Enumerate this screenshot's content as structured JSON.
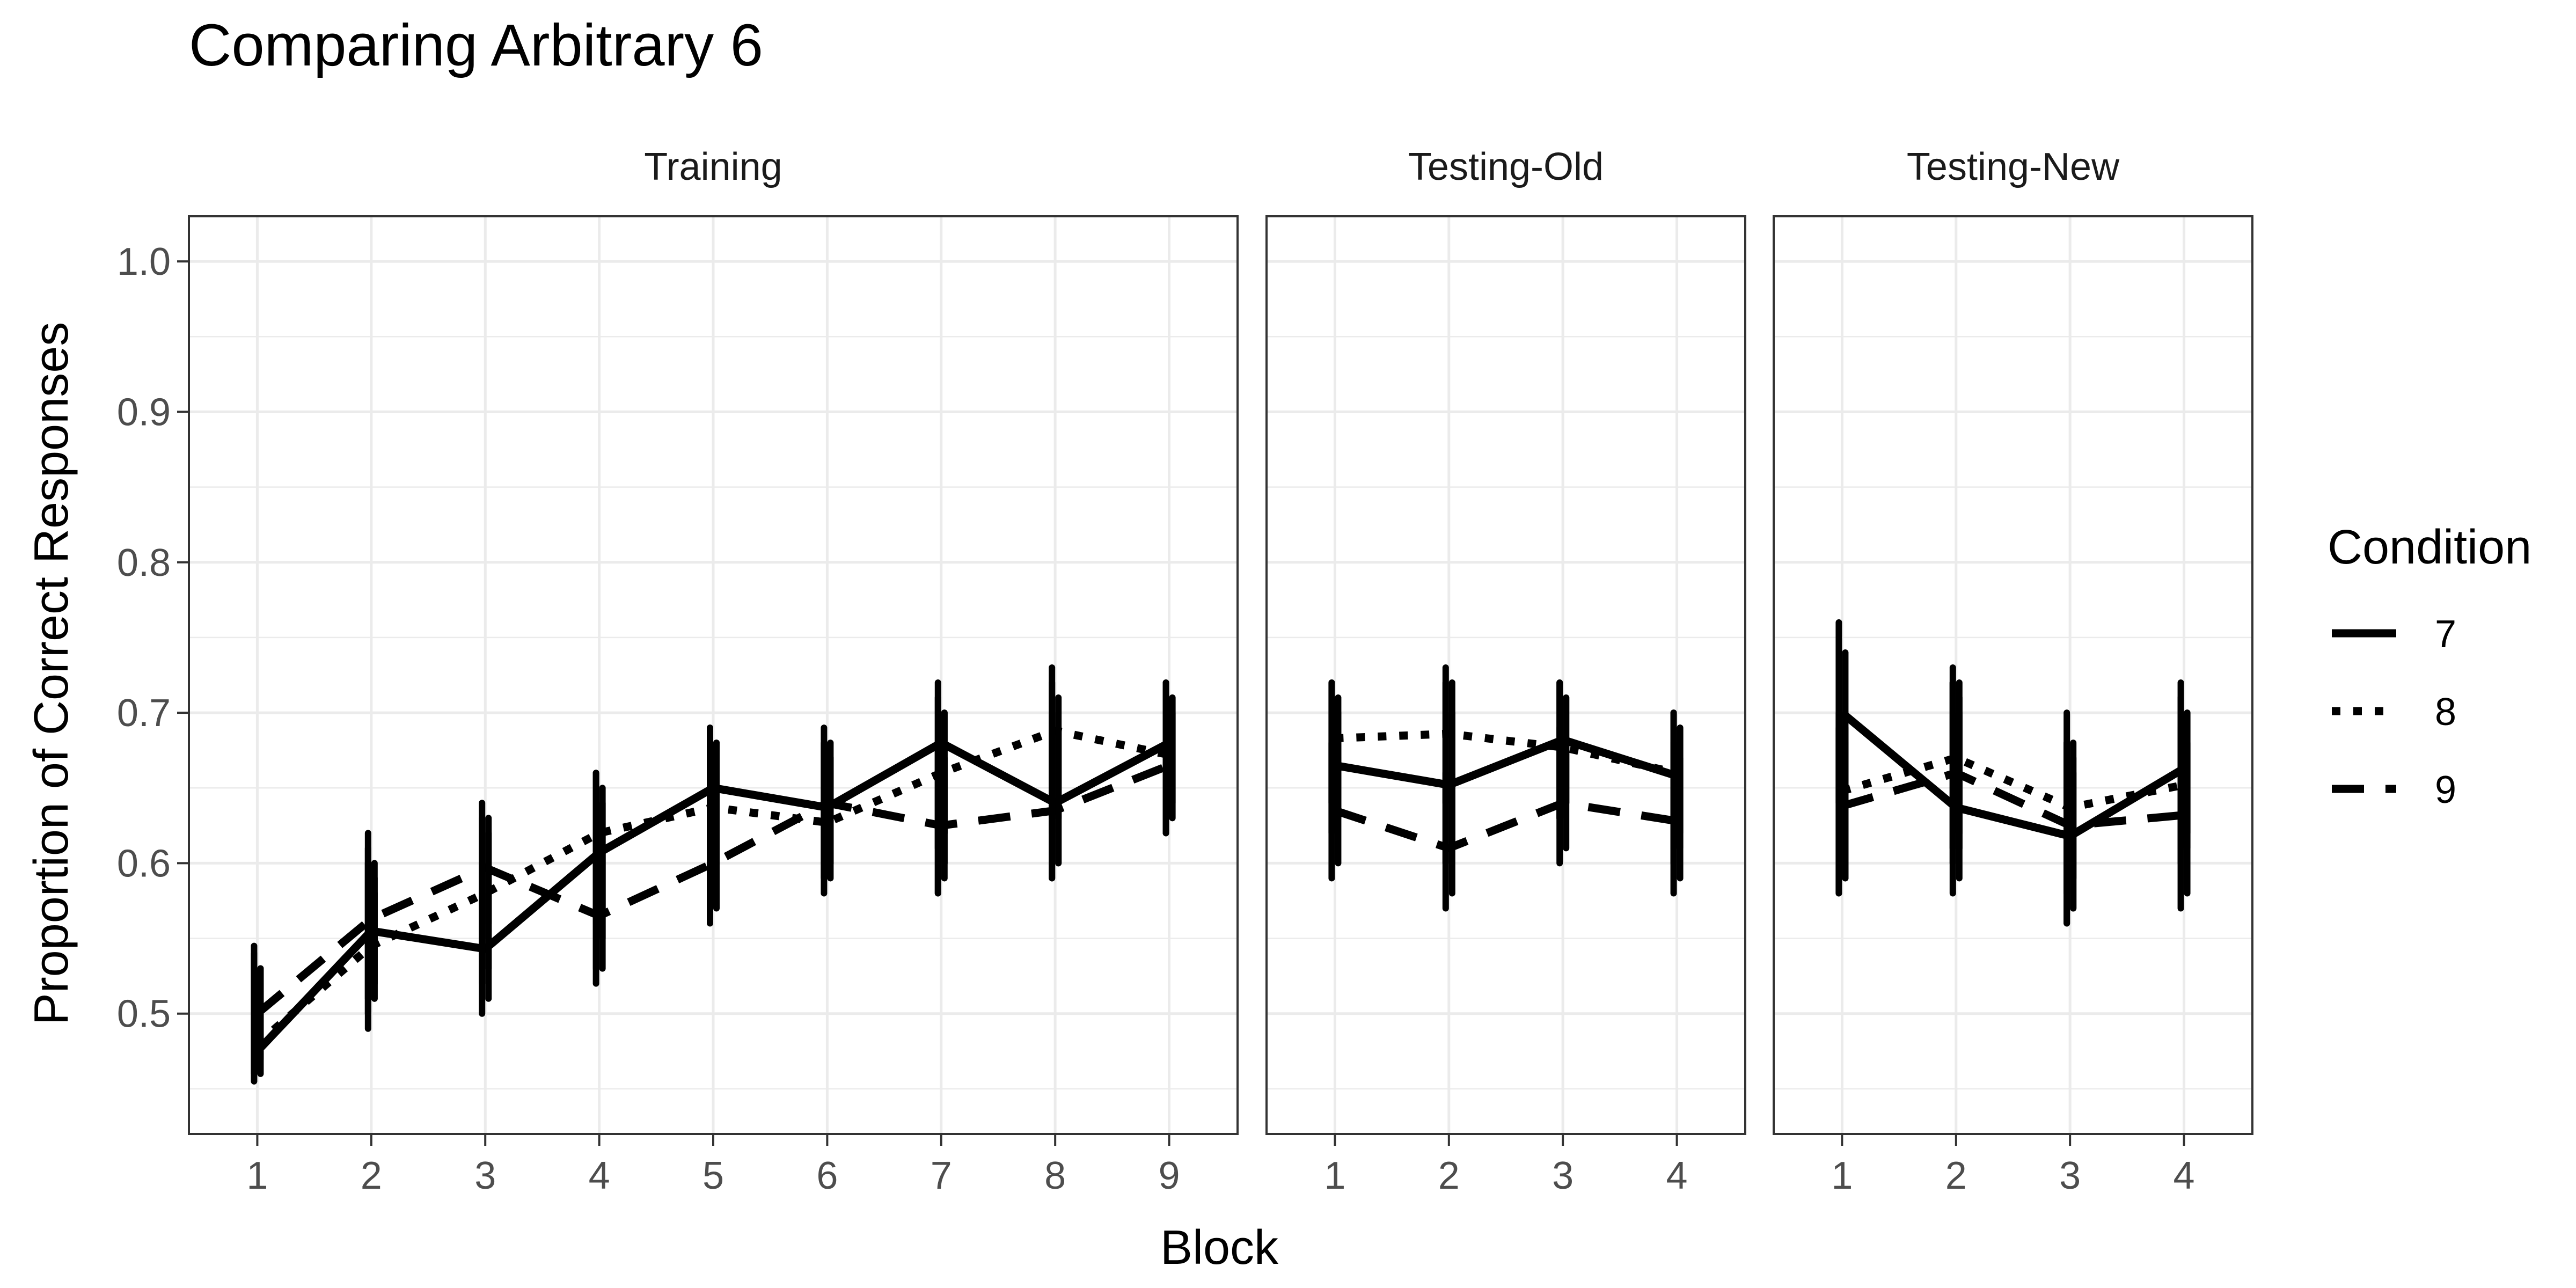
{
  "chart_data": {
    "type": "line",
    "title": "Comparing Arbitrary  6",
    "xlabel": "Block",
    "ylabel": "Proportion of Correct Responses",
    "ylim": [
      0.42,
      1.03
    ],
    "y_ticks": [
      "0.5",
      "0.6",
      "0.7",
      "0.8",
      "0.9",
      "1.0"
    ],
    "y_tick_values": [
      0.5,
      0.6,
      0.7,
      0.8,
      0.9,
      1.0
    ],
    "grid": true,
    "colors": {
      "line": "#000000",
      "grid": "#ebebeb",
      "panel_border": "#333333",
      "text": "#000000",
      "tick_text": "#4d4d4d"
    },
    "legend": {
      "title": "Condition",
      "position": "right",
      "entries": [
        {
          "label": "7",
          "linetype": "solid"
        },
        {
          "label": "8",
          "linetype": "dotted"
        },
        {
          "label": "9",
          "linetype": "dashed"
        }
      ]
    },
    "panels": [
      {
        "name": "Training",
        "categories": [
          "1",
          "2",
          "3",
          "4",
          "5",
          "6",
          "7",
          "8",
          "9"
        ],
        "series": [
          {
            "name": "7",
            "linetype": "solid",
            "values": [
              0.475,
              0.555,
              0.543,
              0.607,
              0.65,
              0.637,
              0.68,
              0.64,
              0.68
            ],
            "errors": [
              [
                [
                  0.455,
                  0.545
                ],
                [
                  0.46,
                  0.53
                ]
              ],
              [
                [
                  0.51,
                  0.6
                ],
                [
                  0.52,
                  0.58
                ]
              ],
              [
                [
                  0.5,
                  0.6
                ],
                [
                  0.51,
                  0.58
                ]
              ],
              [
                [
                  0.56,
                  0.66
                ],
                [
                  0.57,
                  0.64
                ]
              ],
              [
                [
                  0.6,
                  0.69
                ],
                [
                  0.61,
                  0.68
                ]
              ],
              [
                [
                  0.59,
                  0.68
                ],
                [
                  0.6,
                  0.67
                ]
              ],
              [
                [
                  0.58,
                  0.72
                ],
                [
                  0.6,
                  0.7
                ]
              ],
              [
                [
                  0.59,
                  0.73
                ],
                [
                  0.6,
                  0.69
                ]
              ],
              [
                [
                  0.63,
                  0.72
                ],
                [
                  0.64,
                  0.71
                ]
              ]
            ]
          },
          {
            "name": "8",
            "linetype": "dotted",
            "values": [
              0.48,
              0.545,
              0.58,
              0.62,
              0.637,
              0.627,
              0.66,
              0.688,
              0.672
            ],
            "errors": [
              [
                [
                  0.46,
                  0.54
                ],
                [
                  0.47,
                  0.52
                ]
              ],
              [
                [
                  0.5,
                  0.61
                ],
                [
                  0.51,
                  0.59
                ]
              ],
              [
                [
                  0.52,
                  0.63
                ],
                [
                  0.53,
                  0.62
                ]
              ],
              [
                [
                  0.53,
                  0.66
                ],
                [
                  0.55,
                  0.65
                ]
              ],
              [
                [
                  0.58,
                  0.69
                ],
                [
                  0.6,
                  0.68
                ]
              ],
              [
                [
                  0.59,
                  0.68
                ],
                [
                  0.6,
                  0.67
                ]
              ],
              [
                [
                  0.61,
                  0.71
                ],
                [
                  0.62,
                  0.7
                ]
              ],
              [
                [
                  0.62,
                  0.72
                ],
                [
                  0.63,
                  0.71
                ]
              ],
              [
                [
                  0.62,
                  0.72
                ],
                [
                  0.63,
                  0.71
                ]
              ]
            ]
          },
          {
            "name": "9",
            "linetype": "dashed",
            "values": [
              0.5,
              0.563,
              0.597,
              0.565,
              0.6,
              0.64,
              0.625,
              0.635,
              0.665
            ],
            "errors": [
              [
                [
                  0.46,
                  0.54
                ],
                [
                  0.47,
                  0.53
                ]
              ],
              [
                [
                  0.49,
                  0.62
                ],
                [
                  0.51,
                  0.6
                ]
              ],
              [
                [
                  0.55,
                  0.64
                ],
                [
                  0.56,
                  0.63
                ]
              ],
              [
                [
                  0.52,
                  0.62
                ],
                [
                  0.53,
                  0.61
                ]
              ],
              [
                [
                  0.56,
                  0.64
                ],
                [
                  0.57,
                  0.63
                ]
              ],
              [
                [
                  0.58,
                  0.69
                ],
                [
                  0.59,
                  0.68
                ]
              ],
              [
                [
                  0.58,
                  0.68
                ],
                [
                  0.59,
                  0.67
                ]
              ],
              [
                [
                  0.59,
                  0.7
                ],
                [
                  0.6,
                  0.69
                ]
              ],
              [
                [
                  0.62,
                  0.71
                ],
                [
                  0.63,
                  0.7
                ]
              ]
            ]
          }
        ]
      },
      {
        "name": "Testing-Old",
        "categories": [
          "1",
          "2",
          "3",
          "4"
        ],
        "series": [
          {
            "name": "7",
            "linetype": "solid",
            "values": [
              0.665,
              0.652,
              0.682,
              0.658
            ],
            "errors": [
              [
                [
                  0.62,
                  0.72
                ],
                [
                  0.63,
                  0.7
                ]
              ],
              [
                [
                  0.6,
                  0.72
                ],
                [
                  0.61,
                  0.7
                ]
              ],
              [
                [
                  0.63,
                  0.72
                ],
                [
                  0.64,
                  0.71
                ]
              ],
              [
                [
                  0.6,
                  0.7
                ],
                [
                  0.61,
                  0.69
                ]
              ]
            ]
          },
          {
            "name": "8",
            "linetype": "dotted",
            "values": [
              0.683,
              0.686,
              0.677,
              0.66
            ],
            "errors": [
              [
                [
                  0.64,
                  0.72
                ],
                [
                  0.65,
                  0.71
                ]
              ],
              [
                [
                  0.64,
                  0.73
                ],
                [
                  0.65,
                  0.72
                ]
              ],
              [
                [
                  0.63,
                  0.72
                ],
                [
                  0.64,
                  0.71
                ]
              ],
              [
                [
                  0.61,
                  0.7
                ],
                [
                  0.62,
                  0.69
                ]
              ]
            ]
          },
          {
            "name": "9",
            "linetype": "dashed",
            "values": [
              0.635,
              0.61,
              0.64,
              0.628
            ],
            "errors": [
              [
                [
                  0.59,
                  0.68
                ],
                [
                  0.6,
                  0.67
                ]
              ],
              [
                [
                  0.57,
                  0.66
                ],
                [
                  0.58,
                  0.65
                ]
              ],
              [
                [
                  0.6,
                  0.69
                ],
                [
                  0.61,
                  0.68
                ]
              ],
              [
                [
                  0.58,
                  0.68
                ],
                [
                  0.59,
                  0.67
                ]
              ]
            ]
          }
        ]
      },
      {
        "name": "Testing-New",
        "categories": [
          "1",
          "2",
          "3",
          "4"
        ],
        "series": [
          {
            "name": "7",
            "linetype": "solid",
            "values": [
              0.7,
              0.637,
              0.618,
              0.663
            ],
            "errors": [
              [
                [
                  0.64,
                  0.76
                ],
                [
                  0.65,
                  0.74
                ]
              ],
              [
                [
                  0.58,
                  0.72
                ],
                [
                  0.59,
                  0.7
                ]
              ],
              [
                [
                  0.56,
                  0.68
                ],
                [
                  0.57,
                  0.66
                ]
              ],
              [
                [
                  0.61,
                  0.72
                ],
                [
                  0.62,
                  0.7
                ]
              ]
            ]
          },
          {
            "name": "8",
            "linetype": "dotted",
            "values": [
              0.648,
              0.67,
              0.637,
              0.652
            ],
            "errors": [
              [
                [
                  0.58,
                  0.7
                ],
                [
                  0.59,
                  0.69
                ]
              ],
              [
                [
                  0.61,
                  0.73
                ],
                [
                  0.62,
                  0.72
                ]
              ],
              [
                [
                  0.58,
                  0.7
                ],
                [
                  0.59,
                  0.68
                ]
              ],
              [
                [
                  0.6,
                  0.71
                ],
                [
                  0.61,
                  0.7
                ]
              ]
            ]
          },
          {
            "name": "9",
            "linetype": "dashed",
            "values": [
              0.638,
              0.66,
              0.625,
              0.632
            ],
            "errors": [
              [
                [
                  0.58,
                  0.69
                ],
                [
                  0.59,
                  0.68
                ]
              ],
              [
                [
                  0.6,
                  0.72
                ],
                [
                  0.61,
                  0.71
                ]
              ],
              [
                [
                  0.56,
                  0.68
                ],
                [
                  0.57,
                  0.67
                ]
              ],
              [
                [
                  0.57,
                  0.69
                ],
                [
                  0.58,
                  0.68
                ]
              ]
            ]
          }
        ]
      }
    ]
  }
}
